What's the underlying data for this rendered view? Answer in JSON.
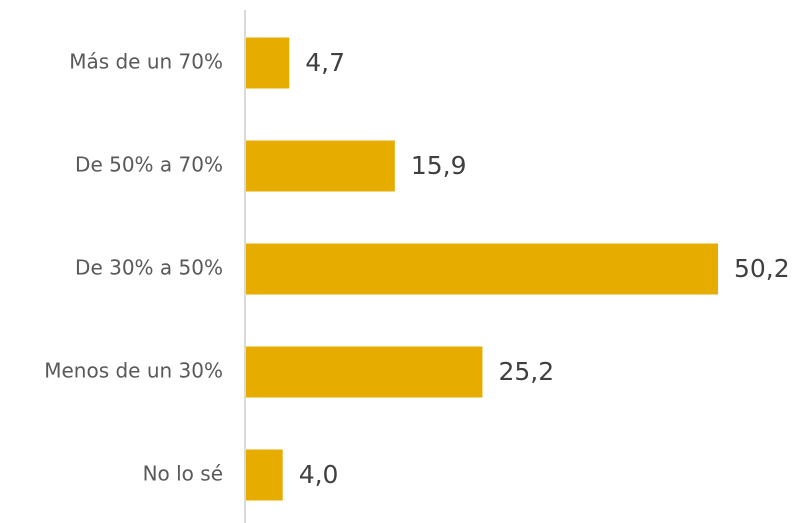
{
  "chart_data": {
    "type": "bar",
    "orientation": "horizontal",
    "categories": [
      "Más de un 70%",
      "De 50% a 70%",
      "De 30% a 50%",
      "Menos de un 30%",
      "No lo sé"
    ],
    "values": [
      4.7,
      15.9,
      50.2,
      25.2,
      4.0
    ],
    "value_labels": [
      "4,7",
      "15,9",
      "50,2",
      "25,2",
      "4,0"
    ],
    "xlim": [
      0,
      50.2
    ],
    "grid": false,
    "bar_color": "#E6AC00",
    "axis_color": "#D9D9D9"
  }
}
